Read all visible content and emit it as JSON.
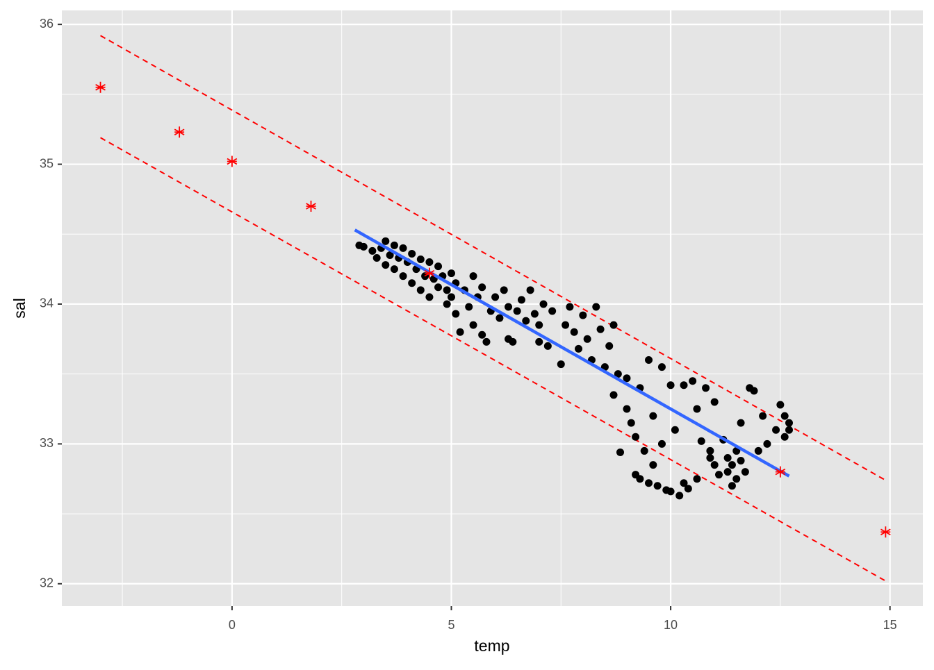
{
  "chart_data": {
    "type": "scatter",
    "x_label": "temp",
    "y_label": "sal",
    "xlim": [
      -3.88,
      15.75
    ],
    "ylim": [
      31.84,
      36.1
    ],
    "xticks": [
      0,
      5,
      10,
      15
    ],
    "yticks": [
      32,
      33,
      34,
      35,
      36
    ],
    "minor_xticks": [
      -2.5,
      2.5,
      7.5,
      12.5
    ],
    "minor_yticks": [
      32.5,
      33.5,
      34.5,
      35.5
    ],
    "grid": true,
    "points": {
      "color": "#000000",
      "x": [
        2.9,
        3.0,
        3.2,
        3.3,
        3.4,
        3.5,
        3.5,
        3.6,
        3.7,
        3.7,
        3.8,
        3.9,
        3.9,
        4.0,
        4.1,
        4.1,
        4.2,
        4.3,
        4.3,
        4.4,
        4.5,
        4.5,
        4.6,
        4.7,
        4.7,
        4.8,
        4.9,
        4.9,
        5.0,
        5.0,
        5.1,
        5.1,
        5.2,
        5.3,
        5.4,
        5.5,
        5.5,
        5.6,
        5.7,
        5.7,
        5.8,
        5.9,
        6.0,
        6.1,
        6.2,
        6.3,
        6.3,
        6.4,
        6.5,
        6.6,
        6.7,
        6.8,
        6.9,
        7.0,
        7.0,
        7.1,
        7.2,
        7.3,
        7.5,
        7.6,
        7.7,
        7.8,
        7.9,
        8.0,
        8.1,
        8.2,
        8.3,
        8.4,
        8.5,
        8.6,
        8.7,
        8.7,
        8.8,
        8.85,
        9.0,
        9.0,
        9.1,
        9.2,
        9.2,
        9.3,
        9.3,
        9.4,
        9.5,
        9.5,
        9.6,
        9.6,
        9.7,
        9.8,
        9.8,
        9.9,
        10.0,
        10.0,
        10.1,
        10.2,
        10.3,
        10.3,
        10.4,
        10.5,
        10.6,
        10.6,
        10.7,
        10.8,
        10.9,
        11.0,
        11.0,
        11.1,
        11.2,
        11.3,
        11.4,
        11.4,
        11.5,
        11.5,
        11.6,
        11.7,
        11.8,
        11.9,
        12.0,
        12.1,
        12.2,
        12.4,
        12.5,
        12.6,
        12.6,
        12.7,
        12.7,
        11.6,
        11.3,
        10.9
      ],
      "y": [
        34.42,
        34.41,
        34.38,
        34.33,
        34.4,
        34.45,
        34.28,
        34.35,
        34.42,
        34.25,
        34.33,
        34.4,
        34.2,
        34.3,
        34.36,
        34.15,
        34.25,
        34.32,
        34.1,
        34.2,
        34.3,
        34.05,
        34.18,
        34.27,
        34.12,
        34.2,
        34.1,
        34.0,
        34.22,
        34.05,
        33.93,
        34.15,
        33.8,
        34.1,
        33.98,
        34.2,
        33.85,
        34.05,
        33.78,
        34.12,
        33.73,
        33.95,
        34.05,
        33.9,
        34.1,
        33.98,
        33.75,
        33.73,
        33.95,
        34.03,
        33.88,
        34.1,
        33.93,
        33.85,
        33.73,
        34.0,
        33.7,
        33.95,
        33.57,
        33.85,
        33.98,
        33.8,
        33.68,
        33.92,
        33.75,
        33.6,
        33.98,
        33.82,
        33.55,
        33.7,
        33.85,
        33.35,
        33.5,
        32.94,
        33.47,
        33.25,
        33.15,
        33.05,
        32.78,
        33.4,
        32.75,
        32.95,
        33.6,
        32.72,
        33.2,
        32.85,
        32.7,
        33.55,
        33.0,
        32.67,
        33.42,
        32.66,
        33.1,
        32.63,
        33.42,
        32.72,
        32.68,
        33.45,
        32.75,
        33.25,
        33.02,
        33.4,
        32.95,
        32.85,
        33.3,
        32.78,
        33.03,
        32.8,
        32.85,
        32.7,
        32.95,
        32.75,
        32.88,
        32.8,
        33.4,
        33.38,
        32.95,
        33.2,
        33.0,
        33.1,
        33.28,
        33.2,
        33.05,
        33.15,
        33.1,
        33.15,
        32.9,
        32.9
      ]
    },
    "stars": {
      "color": "#ff0000",
      "x": [
        -3,
        -1.2,
        0,
        1.8,
        4.5,
        12.5,
        14.9
      ],
      "y": [
        35.55,
        35.23,
        35.02,
        34.7,
        34.22,
        32.8,
        32.37
      ]
    },
    "fit_line": {
      "color": "#3366ff",
      "x": [
        2.8,
        12.7
      ],
      "y": [
        34.53,
        32.77
      ]
    },
    "limit_lines": [
      {
        "color": "#ff0000",
        "x": [
          -3,
          14.9
        ],
        "y": [
          35.92,
          32.74
        ]
      },
      {
        "color": "#ff0000",
        "x": [
          -3,
          14.9
        ],
        "y": [
          35.19,
          32.02
        ]
      }
    ]
  }
}
